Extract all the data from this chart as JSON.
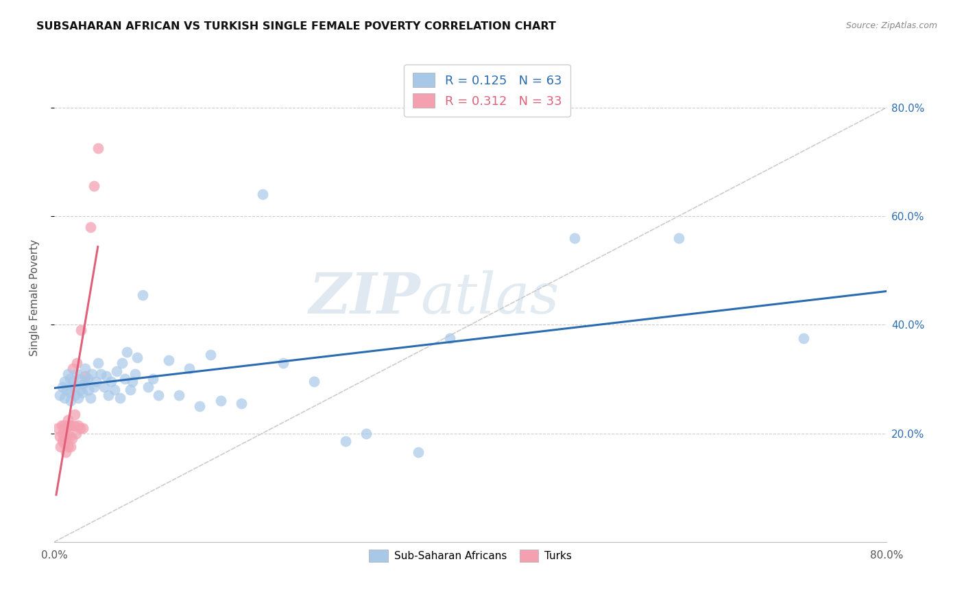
{
  "title": "SUBSAHARAN AFRICAN VS TURKISH SINGLE FEMALE POVERTY CORRELATION CHART",
  "source": "Source: ZipAtlas.com",
  "ylabel": "Single Female Poverty",
  "xlim": [
    0.0,
    0.8
  ],
  "ylim": [
    0.0,
    0.9
  ],
  "r_blue": 0.125,
  "n_blue": 63,
  "r_pink": 0.312,
  "n_pink": 33,
  "blue_color": "#a8c8e8",
  "pink_color": "#f4a0b0",
  "trend_blue": "#2b6cb0",
  "trend_pink": "#e0607a",
  "diagonal_color": "#cccccc",
  "background_color": "#ffffff",
  "watermark_zip": "ZIP",
  "watermark_atlas": "atlas",
  "blue_scatter_x": [
    0.005,
    0.008,
    0.01,
    0.01,
    0.012,
    0.013,
    0.015,
    0.015,
    0.016,
    0.018,
    0.02,
    0.02,
    0.022,
    0.023,
    0.025,
    0.025,
    0.027,
    0.028,
    0.03,
    0.03,
    0.032,
    0.033,
    0.035,
    0.036,
    0.038,
    0.04,
    0.042,
    0.045,
    0.048,
    0.05,
    0.052,
    0.055,
    0.058,
    0.06,
    0.063,
    0.065,
    0.068,
    0.07,
    0.073,
    0.075,
    0.078,
    0.08,
    0.085,
    0.09,
    0.095,
    0.1,
    0.11,
    0.12,
    0.13,
    0.14,
    0.15,
    0.16,
    0.18,
    0.2,
    0.22,
    0.25,
    0.28,
    0.3,
    0.35,
    0.38,
    0.5,
    0.6,
    0.72
  ],
  "blue_scatter_y": [
    0.27,
    0.285,
    0.295,
    0.265,
    0.28,
    0.31,
    0.3,
    0.275,
    0.26,
    0.295,
    0.285,
    0.27,
    0.31,
    0.265,
    0.3,
    0.28,
    0.275,
    0.29,
    0.32,
    0.295,
    0.3,
    0.28,
    0.265,
    0.31,
    0.285,
    0.295,
    0.33,
    0.31,
    0.285,
    0.305,
    0.27,
    0.295,
    0.28,
    0.315,
    0.265,
    0.33,
    0.3,
    0.35,
    0.28,
    0.295,
    0.31,
    0.34,
    0.455,
    0.285,
    0.3,
    0.27,
    0.335,
    0.27,
    0.32,
    0.25,
    0.345,
    0.26,
    0.255,
    0.64,
    0.33,
    0.295,
    0.185,
    0.2,
    0.165,
    0.375,
    0.56,
    0.56,
    0.375
  ],
  "pink_scatter_x": [
    0.003,
    0.005,
    0.006,
    0.007,
    0.008,
    0.008,
    0.009,
    0.01,
    0.01,
    0.01,
    0.011,
    0.012,
    0.012,
    0.013,
    0.013,
    0.014,
    0.015,
    0.016,
    0.016,
    0.017,
    0.018,
    0.019,
    0.02,
    0.021,
    0.022,
    0.023,
    0.025,
    0.026,
    0.028,
    0.03,
    0.035,
    0.038,
    0.042
  ],
  "pink_scatter_y": [
    0.21,
    0.195,
    0.175,
    0.215,
    0.2,
    0.185,
    0.215,
    0.21,
    0.195,
    0.18,
    0.165,
    0.195,
    0.21,
    0.225,
    0.175,
    0.215,
    0.195,
    0.175,
    0.215,
    0.19,
    0.32,
    0.215,
    0.235,
    0.2,
    0.33,
    0.215,
    0.21,
    0.39,
    0.21,
    0.305,
    0.58,
    0.655,
    0.725
  ],
  "xtick_positions": [
    0.0,
    0.1,
    0.2,
    0.3,
    0.4,
    0.5,
    0.6,
    0.7,
    0.8
  ],
  "xtick_labels": [
    "0.0%",
    "",
    "",
    "",
    "",
    "",
    "",
    "",
    "80.0%"
  ],
  "ytick_positions": [
    0.2,
    0.4,
    0.6,
    0.8
  ],
  "ytick_labels": [
    "20.0%",
    "40.0%",
    "60.0%",
    "80.0%"
  ]
}
